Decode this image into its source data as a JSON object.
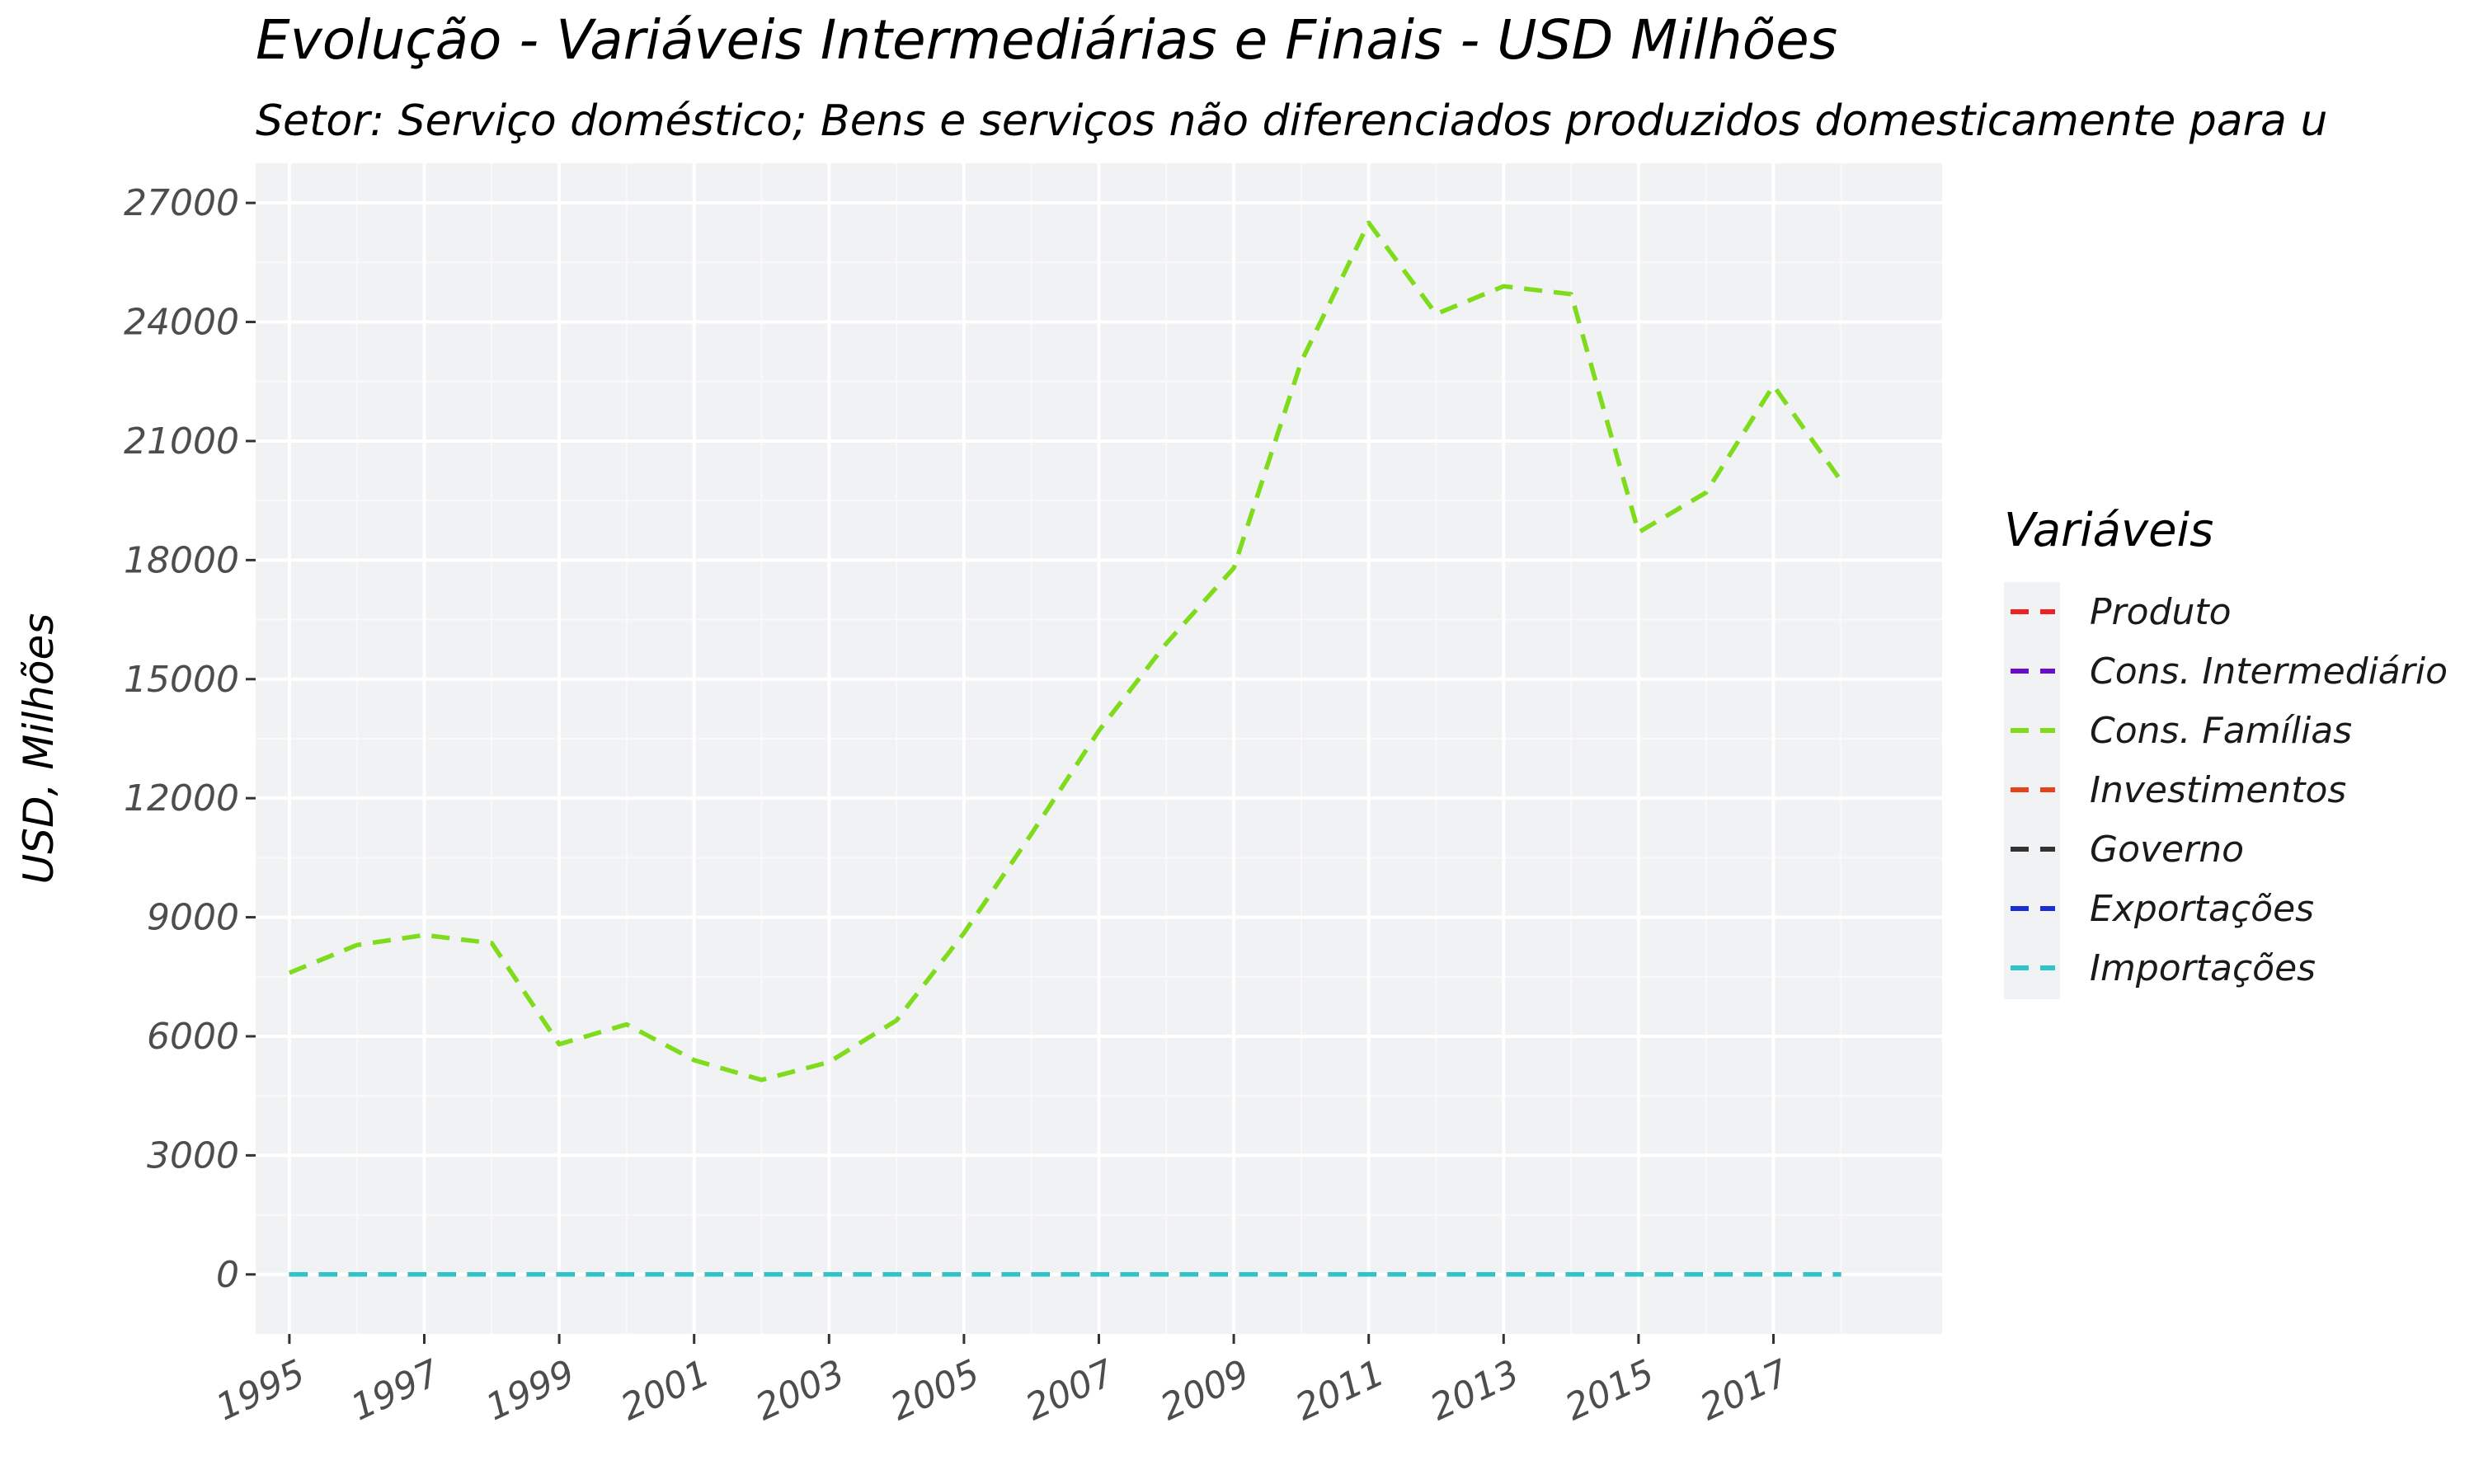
{
  "chart_data": {
    "type": "line",
    "title": "Evolução - Variáveis Intermediárias e Finais - USD Milhões",
    "subtitle": "Setor: Serviço doméstico; Bens e serviços não diferenciados produzidos domesticamente para u",
    "xlabel": "",
    "ylabel": "USD, Milhões",
    "x": [
      1995,
      1996,
      1997,
      1998,
      1999,
      2000,
      2001,
      2002,
      2003,
      2004,
      2005,
      2006,
      2007,
      2008,
      2009,
      2010,
      2011,
      2012,
      2013,
      2014,
      2015,
      2016,
      2017,
      2018
    ],
    "x_tick_labels": [
      "1995",
      "1997",
      "1999",
      "2001",
      "2003",
      "2005",
      "2007",
      "2009",
      "2011",
      "2013",
      "2015",
      "2017"
    ],
    "y_tick_labels": [
      "0",
      "3000",
      "6000",
      "9000",
      "12000",
      "15000",
      "18000",
      "21000",
      "24000",
      "27000"
    ],
    "xlim": [
      1994.5,
      2019.5
    ],
    "ylim": [
      -1500,
      28000
    ],
    "grid": true,
    "line_style": "dashed",
    "legend": {
      "title": "Variáveis",
      "placement": "right"
    },
    "series": [
      {
        "name": "Produto",
        "color": "#ee2222",
        "values": [
          0,
          0,
          0,
          0,
          0,
          0,
          0,
          0,
          0,
          0,
          0,
          0,
          0,
          0,
          0,
          0,
          0,
          0,
          0,
          0,
          0,
          0,
          0,
          0
        ]
      },
      {
        "name": "Cons. Intermediário",
        "color": "#6a0dcc",
        "values": [
          0,
          0,
          0,
          0,
          0,
          0,
          0,
          0,
          0,
          0,
          0,
          0,
          0,
          0,
          0,
          0,
          0,
          0,
          0,
          0,
          0,
          0,
          0,
          0
        ]
      },
      {
        "name": "Cons. Famílias",
        "color": "#7fdc1c",
        "values": [
          7600,
          8300,
          8550,
          8350,
          5800,
          6300,
          5400,
          4900,
          5350,
          6400,
          8600,
          11100,
          13700,
          15900,
          17800,
          23000,
          26500,
          24200,
          24900,
          24700,
          18700,
          19700,
          22400,
          20000
        ]
      },
      {
        "name": "Investimentos",
        "color": "#e8421a",
        "values": [
          0,
          0,
          0,
          0,
          0,
          0,
          0,
          0,
          0,
          0,
          0,
          0,
          0,
          0,
          0,
          0,
          0,
          0,
          0,
          0,
          0,
          0,
          0,
          0
        ]
      },
      {
        "name": "Governo",
        "color": "#333333",
        "values": [
          0,
          0,
          0,
          0,
          0,
          0,
          0,
          0,
          0,
          0,
          0,
          0,
          0,
          0,
          0,
          0,
          0,
          0,
          0,
          0,
          0,
          0,
          0,
          0
        ]
      },
      {
        "name": "Exportações",
        "color": "#1a2ed8",
        "values": [
          0,
          0,
          0,
          0,
          0,
          0,
          0,
          0,
          0,
          0,
          0,
          0,
          0,
          0,
          0,
          0,
          0,
          0,
          0,
          0,
          0,
          0,
          0,
          0
        ]
      },
      {
        "name": "Importações",
        "color": "#2ec4c9",
        "values": [
          0,
          0,
          0,
          0,
          0,
          0,
          0,
          0,
          0,
          0,
          0,
          0,
          0,
          0,
          0,
          0,
          0,
          0,
          0,
          0,
          0,
          0,
          0,
          0
        ]
      }
    ],
    "colors": {
      "panel_background": "#f1f2f4",
      "grid_major": "#ffffff",
      "grid_minor": "#f9f9fa",
      "tick_text": "#4d4d4d"
    }
  }
}
